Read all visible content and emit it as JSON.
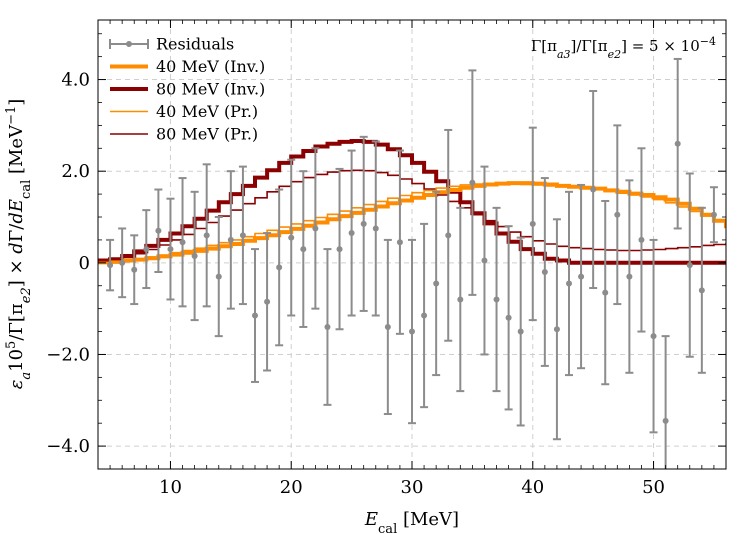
{
  "chart_data": {
    "type": "line",
    "xlabel": "E_cal [MeV]",
    "ylabel": "ε_a 10^5/Γ[π_e2] × dΓ/dE_cal [MeV^-1]",
    "annotation": "Γ[π_a3]/Γ[π_e2] = 5 × 10^-4",
    "xlim": [
      4,
      56
    ],
    "ylim": [
      -4.5,
      5.3
    ],
    "x_ticks": [
      10,
      20,
      30,
      40,
      50
    ],
    "x_tick_labels": [
      "10",
      "20",
      "30",
      "40",
      "50"
    ],
    "y_ticks": [
      -4,
      -2,
      0,
      2,
      4
    ],
    "y_tick_labels": [
      "−4.0",
      "−2.0",
      "0",
      "2.0",
      "4.0"
    ],
    "grid": true,
    "legend_position": "top-left",
    "legend": [
      {
        "label": "Residuals",
        "kind": "errorbar",
        "color": "#8c8c8c"
      },
      {
        "label": "40 MeV (Inv.)",
        "kind": "thick",
        "color": "#ff8c00"
      },
      {
        "label": "80 MeV (Inv.)",
        "kind": "thick",
        "color": "#8b0000"
      },
      {
        "label": "40 MeV (Pr.)",
        "kind": "thin",
        "color": "#ff8c00"
      },
      {
        "label": "80 MeV (Pr.)",
        "kind": "thin",
        "color": "#8b0000"
      }
    ],
    "series": [
      {
        "name": "Residuals",
        "color": "#8c8c8c",
        "kind": "errorbar",
        "x": [
          5,
          6,
          7,
          8,
          9,
          10,
          11,
          12,
          13,
          14,
          15,
          16,
          17,
          18,
          19,
          20,
          21,
          22,
          23,
          24,
          25,
          26,
          27,
          28,
          29,
          30,
          31,
          32,
          33,
          34,
          35,
          36,
          37,
          38,
          39,
          40,
          41,
          42,
          43,
          44,
          45,
          46,
          47,
          48,
          49,
          50,
          51,
          52,
          53,
          54,
          55
        ],
        "y": [
          -0.05,
          0.0,
          -0.15,
          0.3,
          0.7,
          0.3,
          0.45,
          0.15,
          0.6,
          -0.3,
          0.5,
          0.6,
          -1.15,
          -0.85,
          -0.1,
          0.55,
          0.3,
          0.75,
          -1.4,
          0.3,
          0.65,
          0.85,
          0.75,
          -1.4,
          0.45,
          -1.5,
          -1.15,
          -0.45,
          0.6,
          -0.8,
          1.75,
          0.05,
          -0.8,
          -1.2,
          -1.5,
          0.85,
          -0.2,
          -1.45,
          -0.45,
          -0.3,
          1.6,
          -0.65,
          1.05,
          -0.3,
          0.5,
          -1.6,
          -3.45,
          2.6,
          -0.05,
          -0.6,
          1.05
        ],
        "err": [
          0.55,
          0.75,
          0.75,
          0.85,
          0.9,
          1.1,
          1.4,
          1.4,
          1.55,
          1.3,
          1.5,
          1.5,
          1.45,
          1.5,
          1.7,
          1.7,
          1.7,
          1.75,
          1.7,
          1.75,
          1.8,
          1.9,
          1.9,
          1.9,
          2.0,
          2.0,
          2.0,
          2.0,
          2.3,
          2.0,
          2.45,
          2.05,
          2.0,
          2.0,
          2.05,
          2.1,
          2.05,
          2.4,
          2.0,
          2.0,
          2.15,
          2.0,
          1.95,
          2.1,
          2.0,
          2.1,
          1.85,
          1.85,
          2.0,
          1.8,
          0.6
        ]
      },
      {
        "name": "40 MeV (Inv.)",
        "color": "#ff8c00",
        "kind": "step-thick",
        "x": [
          4,
          5,
          6,
          7,
          8,
          9,
          10,
          11,
          12,
          13,
          14,
          15,
          16,
          17,
          18,
          19,
          20,
          21,
          22,
          23,
          24,
          25,
          26,
          27,
          28,
          29,
          30,
          31,
          32,
          33,
          34,
          35,
          36,
          37,
          38,
          39,
          40,
          41,
          42,
          43,
          44,
          45,
          46,
          47,
          48,
          49,
          50,
          51,
          52,
          53,
          54,
          55,
          56
        ],
        "y": [
          0.01,
          0.02,
          0.05,
          0.07,
          0.1,
          0.14,
          0.18,
          0.22,
          0.26,
          0.31,
          0.36,
          0.41,
          0.48,
          0.54,
          0.6,
          0.67,
          0.74,
          0.81,
          0.88,
          0.95,
          1.02,
          1.09,
          1.16,
          1.23,
          1.3,
          1.36,
          1.42,
          1.48,
          1.54,
          1.59,
          1.64,
          1.68,
          1.71,
          1.73,
          1.74,
          1.74,
          1.73,
          1.71,
          1.68,
          1.66,
          1.64,
          1.62,
          1.58,
          1.55,
          1.51,
          1.48,
          1.43,
          1.38,
          1.29,
          1.18,
          1.05,
          0.92,
          0.8
        ]
      },
      {
        "name": "80 MeV (Inv.)",
        "color": "#8b0000",
        "kind": "step-thick",
        "x": [
          4,
          5,
          6,
          7,
          8,
          9,
          10,
          11,
          12,
          13,
          14,
          15,
          16,
          17,
          18,
          19,
          20,
          21,
          22,
          23,
          24,
          25,
          26,
          27,
          28,
          29,
          30,
          31,
          32,
          33,
          34,
          35,
          36,
          37,
          38,
          39,
          40,
          41,
          42,
          43,
          44,
          45,
          46,
          47,
          48,
          49,
          50,
          51,
          52,
          53,
          54,
          55,
          56
        ],
        "y": [
          0.05,
          0.08,
          0.15,
          0.25,
          0.37,
          0.5,
          0.64,
          0.8,
          0.96,
          1.14,
          1.32,
          1.5,
          1.68,
          1.86,
          2.02,
          2.18,
          2.32,
          2.44,
          2.54,
          2.6,
          2.64,
          2.66,
          2.64,
          2.58,
          2.48,
          2.35,
          2.18,
          1.99,
          1.78,
          1.55,
          1.32,
          1.08,
          0.86,
          0.64,
          0.46,
          0.3,
          0.2,
          0.09,
          0.05,
          0.0,
          0.0,
          0.0,
          0.0,
          0.0,
          0.0,
          0.0,
          0.0,
          0.0,
          0.0,
          0.0,
          0.0,
          0.0,
          0.0
        ]
      },
      {
        "name": "40 MeV (Pr.)",
        "color": "#ff8c00",
        "kind": "step-thin",
        "x": [
          4,
          5,
          6,
          7,
          8,
          9,
          10,
          11,
          12,
          13,
          14,
          15,
          16,
          17,
          18,
          19,
          20,
          21,
          22,
          23,
          24,
          25,
          26,
          27,
          28,
          29,
          30,
          31,
          32,
          33,
          34,
          35,
          36,
          37,
          38,
          39,
          40,
          41,
          42,
          43,
          44,
          45,
          46,
          47,
          48,
          49,
          50,
          51,
          52,
          53,
          54,
          55,
          56
        ],
        "y": [
          0.01,
          0.03,
          0.06,
          0.09,
          0.13,
          0.17,
          0.22,
          0.27,
          0.32,
          0.38,
          0.44,
          0.5,
          0.57,
          0.64,
          0.71,
          0.78,
          0.85,
          0.92,
          0.99,
          1.06,
          1.13,
          1.2,
          1.27,
          1.34,
          1.41,
          1.47,
          1.53,
          1.58,
          1.63,
          1.67,
          1.7,
          1.72,
          1.73,
          1.73,
          1.72,
          1.71,
          1.7,
          1.68,
          1.67,
          1.65,
          1.63,
          1.6,
          1.56,
          1.52,
          1.48,
          1.44,
          1.38,
          1.31,
          1.22,
          1.12,
          1.02,
          0.94,
          0.88
        ]
      },
      {
        "name": "80 MeV (Pr.)",
        "color": "#8b0000",
        "kind": "step-thin",
        "x": [
          4,
          5,
          6,
          7,
          8,
          9,
          10,
          11,
          12,
          13,
          14,
          15,
          16,
          17,
          18,
          19,
          20,
          21,
          22,
          23,
          24,
          25,
          26,
          27,
          28,
          29,
          30,
          31,
          32,
          33,
          34,
          35,
          36,
          37,
          38,
          39,
          40,
          41,
          42,
          43,
          44,
          45,
          46,
          47,
          48,
          49,
          50,
          51,
          52,
          53,
          54,
          55,
          56
        ],
        "y": [
          0.04,
          0.07,
          0.12,
          0.2,
          0.29,
          0.39,
          0.5,
          0.62,
          0.75,
          0.88,
          1.02,
          1.15,
          1.29,
          1.42,
          1.55,
          1.67,
          1.77,
          1.86,
          1.93,
          1.98,
          2.01,
          2.02,
          2.01,
          1.97,
          1.91,
          1.83,
          1.73,
          1.61,
          1.48,
          1.34,
          1.2,
          1.05,
          0.92,
          0.79,
          0.67,
          0.57,
          0.48,
          0.41,
          0.36,
          0.33,
          0.31,
          0.29,
          0.28,
          0.27,
          0.27,
          0.28,
          0.29,
          0.31,
          0.33,
          0.35,
          0.38,
          0.4,
          0.42
        ]
      }
    ]
  }
}
